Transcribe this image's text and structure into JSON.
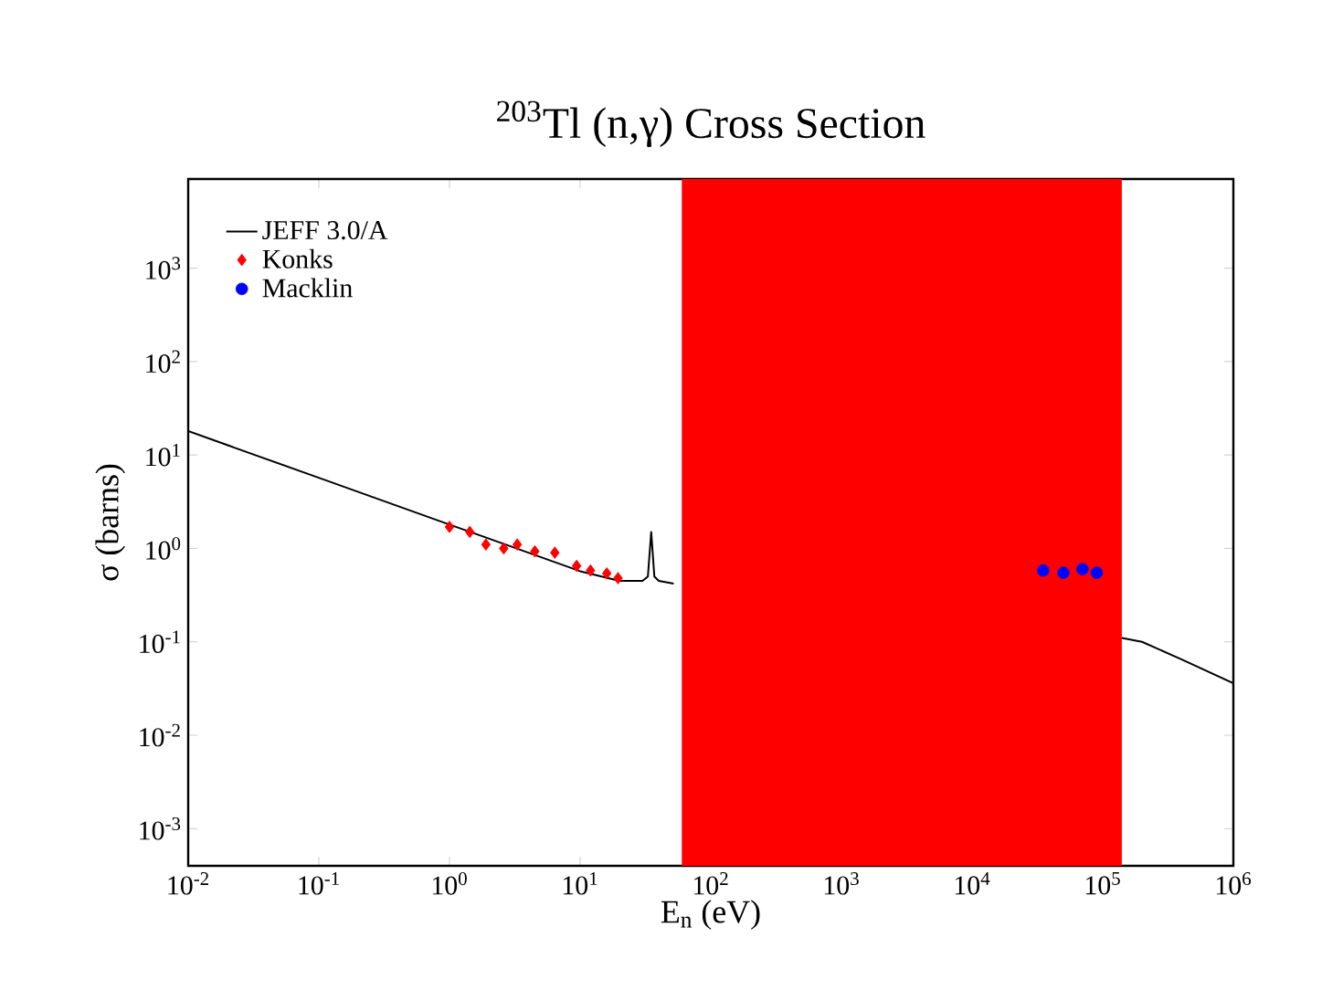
{
  "chart_data": {
    "type": "line",
    "title": "$^{203}$Tl (n,γ) Cross Section",
    "xlabel": "E$_{n}$ (eV)",
    "ylabel": "σ (barns)",
    "log": "xy",
    "xlim": [
      0.01,
      1000000
    ],
    "ylim": [
      0.0004,
      9000
    ],
    "xticks": [
      {
        "value": 0.01,
        "label": "10$^{-2}$"
      },
      {
        "value": 0.1,
        "label": "10$^{-1}$"
      },
      {
        "value": 1,
        "label": "10$^{0}$"
      },
      {
        "value": 10,
        "label": "10$^{1}$"
      },
      {
        "value": 100,
        "label": "10$^{2}$"
      },
      {
        "value": 1000,
        "label": "10$^{3}$"
      },
      {
        "value": 10000,
        "label": "10$^{4}$"
      },
      {
        "value": 100000,
        "label": "10$^{5}$"
      },
      {
        "value": 1000000,
        "label": "10$^{6}$"
      }
    ],
    "yticks": [
      {
        "value": 0.001,
        "label": "10$^{-3}$"
      },
      {
        "value": 0.01,
        "label": "10$^{-2}$"
      },
      {
        "value": 0.1,
        "label": "10$^{-1}$"
      },
      {
        "value": 1,
        "label": "10$^{0}$"
      },
      {
        "value": 10,
        "label": "10$^{1}$"
      },
      {
        "value": 100,
        "label": "10$^{2}$"
      },
      {
        "value": 1000,
        "label": "10$^{3}$"
      }
    ],
    "legend": "top left",
    "grid": false,
    "bands": [
      {
        "axis": "x",
        "from": 60,
        "to": 140000,
        "color": "#ff0000"
      }
    ],
    "series": [
      {
        "name": "JEFF 3.0/A",
        "color": "#000000",
        "marker": "none",
        "x": [
          0.01,
          0.1,
          1,
          10,
          20,
          30,
          33,
          35,
          37,
          40,
          52,
          null,
          140000,
          200000,
          400000,
          1000000
        ],
        "values": [
          18,
          5.7,
          1.8,
          0.57,
          0.45,
          0.45,
          0.5,
          1.5,
          0.5,
          0.45,
          0.42,
          null,
          0.11,
          0.1,
          0.065,
          0.036
        ]
      },
      {
        "name": "Konks",
        "type": "scatter",
        "color": "#ff0000",
        "marker": "diamond",
        "x": [
          1.0,
          1.43,
          1.9,
          2.6,
          3.3,
          4.5,
          6.4,
          9.4,
          12,
          16,
          19.5
        ],
        "values": [
          1.7,
          1.5,
          1.1,
          1.0,
          1.1,
          0.93,
          0.9,
          0.65,
          0.58,
          0.54,
          0.48
        ]
      },
      {
        "name": "Macklin",
        "type": "scatter",
        "color": "#0000ff",
        "marker": "circle",
        "x": [
          35000,
          50000,
          70000,
          90000
        ],
        "values": [
          0.58,
          0.55,
          0.6,
          0.55
        ]
      }
    ]
  }
}
